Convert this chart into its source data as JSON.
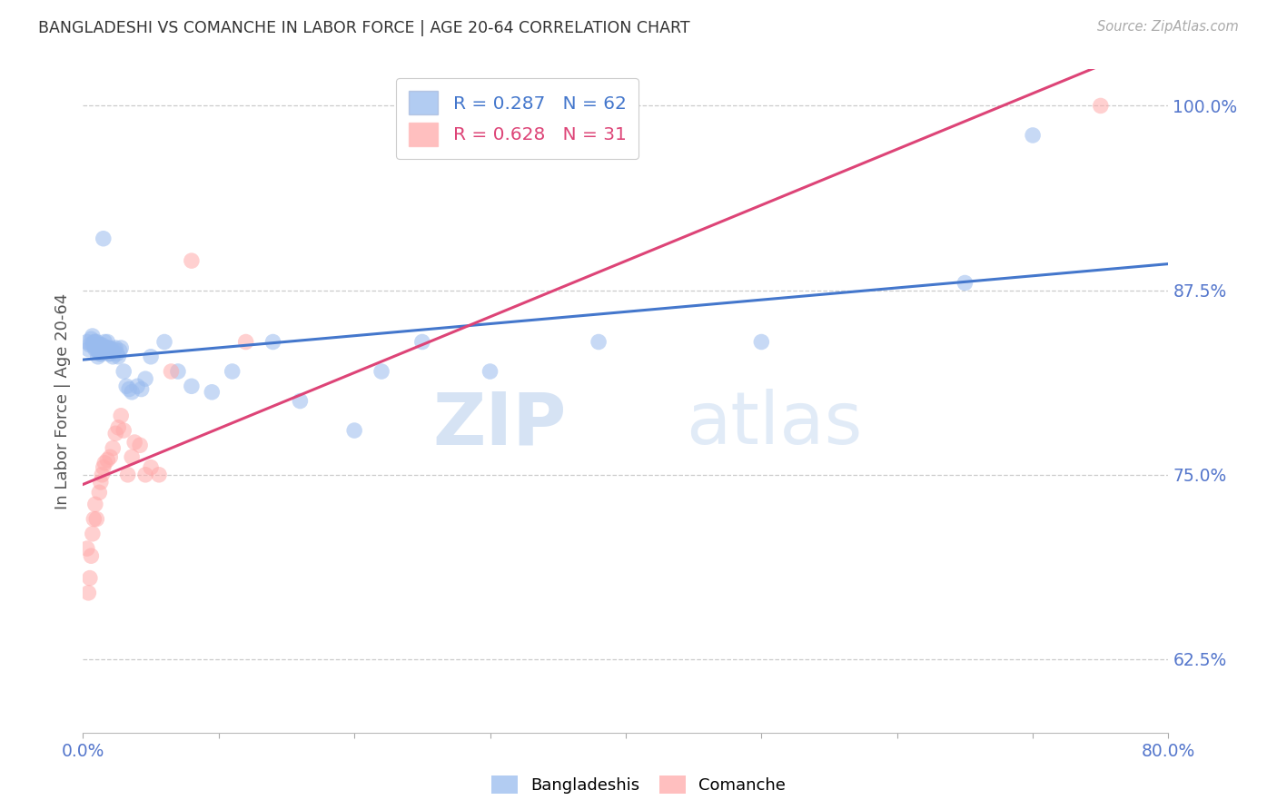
{
  "title": "BANGLADESHI VS COMANCHE IN LABOR FORCE | AGE 20-64 CORRELATION CHART",
  "source": "Source: ZipAtlas.com",
  "ylabel": "In Labor Force | Age 20-64",
  "xmin": 0.0,
  "xmax": 0.8,
  "ymin": 0.575,
  "ymax": 1.025,
  "yticks": [
    0.625,
    0.75,
    0.875,
    1.0
  ],
  "ytick_labels": [
    "62.5%",
    "75.0%",
    "87.5%",
    "100.0%"
  ],
  "blue_color": "#99bbee",
  "pink_color": "#ffaaaa",
  "trend_blue": "#4477cc",
  "trend_pink": "#dd4477",
  "label_color": "#5577cc",
  "r_blue": 0.287,
  "n_blue": 62,
  "r_pink": 0.628,
  "n_pink": 31,
  "blue_x": [
    0.003,
    0.004,
    0.005,
    0.006,
    0.007,
    0.007,
    0.008,
    0.008,
    0.009,
    0.009,
    0.01,
    0.01,
    0.01,
    0.011,
    0.011,
    0.012,
    0.012,
    0.013,
    0.013,
    0.014,
    0.014,
    0.015,
    0.015,
    0.016,
    0.016,
    0.017,
    0.018,
    0.018,
    0.019,
    0.019,
    0.02,
    0.021,
    0.022,
    0.023,
    0.024,
    0.025,
    0.026,
    0.027,
    0.028,
    0.03,
    0.032,
    0.034,
    0.036,
    0.04,
    0.043,
    0.046,
    0.05,
    0.06,
    0.07,
    0.08,
    0.095,
    0.11,
    0.14,
    0.16,
    0.2,
    0.22,
    0.25,
    0.3,
    0.38,
    0.5,
    0.65,
    0.7
  ],
  "blue_y": [
    0.84,
    0.835,
    0.838,
    0.842,
    0.838,
    0.844,
    0.84,
    0.838,
    0.84,
    0.835,
    0.84,
    0.835,
    0.838,
    0.835,
    0.83,
    0.838,
    0.832,
    0.832,
    0.838,
    0.838,
    0.832,
    0.835,
    0.91,
    0.84,
    0.836,
    0.836,
    0.836,
    0.84,
    0.832,
    0.836,
    0.832,
    0.835,
    0.83,
    0.835,
    0.836,
    0.832,
    0.83,
    0.834,
    0.836,
    0.82,
    0.81,
    0.808,
    0.806,
    0.81,
    0.808,
    0.815,
    0.83,
    0.84,
    0.82,
    0.81,
    0.806,
    0.82,
    0.84,
    0.8,
    0.78,
    0.82,
    0.84,
    0.82,
    0.84,
    0.84,
    0.88,
    0.98
  ],
  "pink_x": [
    0.003,
    0.004,
    0.005,
    0.006,
    0.007,
    0.008,
    0.009,
    0.01,
    0.012,
    0.013,
    0.014,
    0.015,
    0.016,
    0.018,
    0.02,
    0.022,
    0.024,
    0.026,
    0.028,
    0.03,
    0.033,
    0.036,
    0.038,
    0.042,
    0.046,
    0.05,
    0.056,
    0.065,
    0.08,
    0.12,
    0.75
  ],
  "pink_y": [
    0.7,
    0.67,
    0.68,
    0.695,
    0.71,
    0.72,
    0.73,
    0.72,
    0.738,
    0.745,
    0.75,
    0.755,
    0.758,
    0.76,
    0.762,
    0.768,
    0.778,
    0.782,
    0.79,
    0.78,
    0.75,
    0.762,
    0.772,
    0.77,
    0.75,
    0.755,
    0.75,
    0.82,
    0.895,
    0.84,
    1.0
  ],
  "watermark_zip": "ZIP",
  "watermark_atlas": "atlas",
  "background": "#ffffff",
  "grid_color": "#cccccc"
}
